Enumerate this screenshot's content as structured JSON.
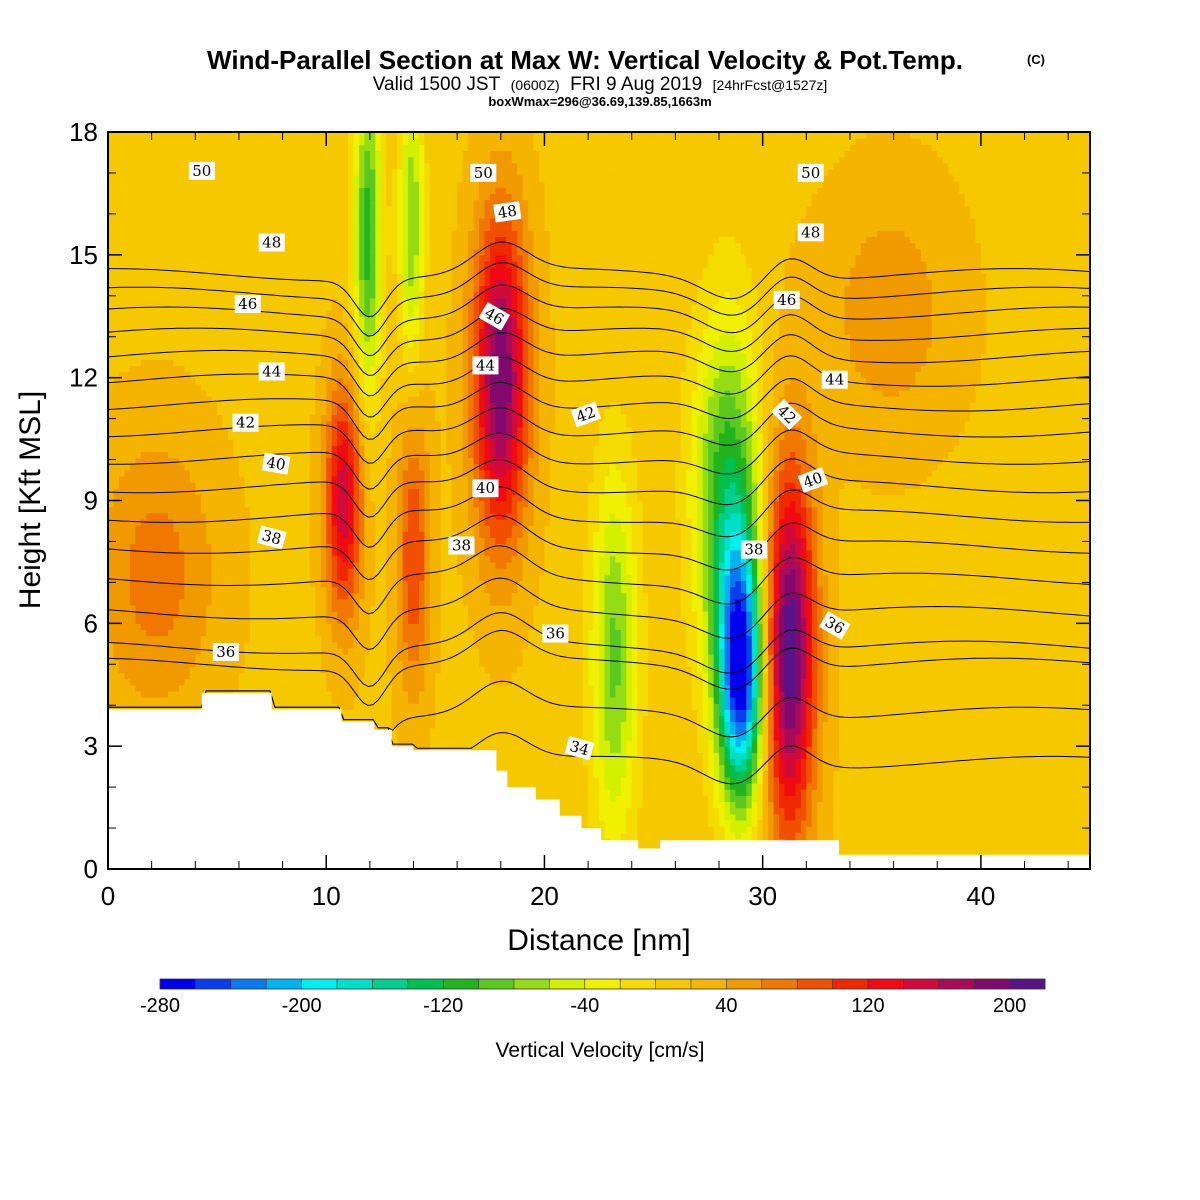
{
  "header": {
    "title": "Wind-Parallel Section at Max W: Vertical Velocity & Pot.Temp.",
    "title_mark": "(C)",
    "valid_prefix": "Valid 1500 JST",
    "valid_utc": "(0600Z)",
    "valid_date": "FRI 9 Aug 2019",
    "forecast_info": "[24hrFcst@1527z]",
    "box_info": "boxWmax=296@36.69,139.85,1663m"
  },
  "chart_data": {
    "type": "heatmap",
    "xlabel": "Distance [nm]",
    "ylabel": "Height [Kft MSL]",
    "xlim": [
      0,
      45
    ],
    "ylim": [
      0,
      18
    ],
    "x_ticks": [
      "0",
      "10",
      "20",
      "30",
      "40"
    ],
    "x_tick_values": [
      0,
      10,
      20,
      30,
      40
    ],
    "y_ticks": [
      "0",
      "3",
      "6",
      "9",
      "12",
      "15",
      "18"
    ],
    "y_tick_values": [
      0,
      3,
      6,
      9,
      12,
      15,
      18
    ],
    "background_value": 15,
    "features": [
      {
        "kind": "updraft",
        "x": 2.2,
        "y": 7.2,
        "sx": 2.0,
        "sy": 2.4,
        "w": 55
      },
      {
        "kind": "updraft",
        "x": 10.8,
        "y": 9.0,
        "sx": 0.6,
        "sy": 2.0,
        "w": 140
      },
      {
        "kind": "updraft",
        "x": 14.0,
        "y": 7.7,
        "sx": 0.55,
        "sy": 2.4,
        "w": 85
      },
      {
        "kind": "updraft",
        "x": 18.0,
        "y": 12.0,
        "sx": 0.9,
        "sy": 2.8,
        "w": 185
      },
      {
        "kind": "updraft",
        "x": 31.2,
        "y": 5.4,
        "sx": 0.85,
        "sy": 3.2,
        "w": 205
      },
      {
        "kind": "updraft",
        "x": 35.8,
        "y": 13.6,
        "sx": 2.2,
        "sy": 2.2,
        "w": 38
      },
      {
        "kind": "downdraft",
        "x": 11.9,
        "y": 15.5,
        "sx": 0.45,
        "sy": 2.8,
        "w": -125
      },
      {
        "kind": "downdraft",
        "x": 13.9,
        "y": 15.8,
        "sx": 0.4,
        "sy": 2.4,
        "w": -95
      },
      {
        "kind": "downdraft",
        "x": 23.2,
        "y": 5.2,
        "sx": 0.75,
        "sy": 3.2,
        "w": -100
      },
      {
        "kind": "downdraft",
        "x": 28.4,
        "y": 9.2,
        "sx": 1.1,
        "sy": 3.0,
        "w": -130
      },
      {
        "kind": "downdraft",
        "x": 29.0,
        "y": 4.8,
        "sx": 0.75,
        "sy": 2.2,
        "w": -285
      }
    ],
    "terrain": {
      "x": [
        0,
        4.3,
        4.3,
        7.5,
        7.5,
        10.7,
        10.7,
        12.2,
        12.2,
        13.0,
        13.0,
        14.0,
        14.0,
        17.8,
        17.8,
        18.3,
        18.3,
        19.6,
        19.6,
        20.7,
        20.7,
        21.7,
        21.7,
        22.6,
        22.6,
        24.3,
        24.3,
        25.3,
        25.3,
        33.5,
        33.5,
        45
      ],
      "y": [
        3.9,
        3.9,
        4.3,
        4.3,
        3.9,
        3.9,
        3.6,
        3.6,
        3.4,
        3.4,
        3.0,
        3.0,
        2.9,
        2.9,
        2.4,
        2.4,
        2.0,
        2.0,
        1.7,
        1.7,
        1.3,
        1.3,
        1.0,
        1.0,
        0.7,
        0.7,
        0.5,
        0.5,
        0.7,
        0.7,
        0.35,
        0.35
      ]
    },
    "contours": {
      "series_label": "Potential temperature",
      "levels": [
        34,
        35,
        36,
        37,
        38,
        39,
        40,
        41,
        42,
        43,
        44,
        45,
        46,
        47,
        48,
        49,
        50,
        51
      ],
      "labels": [
        {
          "text": "50",
          "x": 4.3,
          "y": 17.05,
          "angle": 0
        },
        {
          "text": "50",
          "x": 17.2,
          "y": 17.0,
          "angle": 0
        },
        {
          "text": "50",
          "x": 32.2,
          "y": 17.0,
          "angle": 0
        },
        {
          "text": "48",
          "x": 7.5,
          "y": 15.3,
          "angle": 0
        },
        {
          "text": "48",
          "x": 18.3,
          "y": 16.05,
          "angle": -8
        },
        {
          "text": "48",
          "x": 32.2,
          "y": 15.55,
          "angle": 0
        },
        {
          "text": "46",
          "x": 6.4,
          "y": 13.8,
          "angle": 0
        },
        {
          "text": "46",
          "x": 17.7,
          "y": 13.5,
          "angle": 30
        },
        {
          "text": "46",
          "x": 31.1,
          "y": 13.9,
          "angle": 0
        },
        {
          "text": "44",
          "x": 7.5,
          "y": 12.15,
          "angle": 0
        },
        {
          "text": "44",
          "x": 17.3,
          "y": 12.3,
          "angle": 0
        },
        {
          "text": "44",
          "x": 33.3,
          "y": 11.95,
          "angle": 0
        },
        {
          "text": "42",
          "x": 6.3,
          "y": 10.9,
          "angle": 0
        },
        {
          "text": "42",
          "x": 21.9,
          "y": 11.1,
          "angle": -20
        },
        {
          "text": "42",
          "x": 31.1,
          "y": 11.1,
          "angle": 45
        },
        {
          "text": "40",
          "x": 7.7,
          "y": 9.9,
          "angle": 10
        },
        {
          "text": "40",
          "x": 17.3,
          "y": 9.3,
          "angle": 0
        },
        {
          "text": "40",
          "x": 32.3,
          "y": 9.5,
          "angle": -20
        },
        {
          "text": "38",
          "x": 7.5,
          "y": 8.1,
          "angle": 15
        },
        {
          "text": "38",
          "x": 16.2,
          "y": 7.9,
          "angle": 0
        },
        {
          "text": "38",
          "x": 29.6,
          "y": 7.8,
          "angle": 0
        },
        {
          "text": "36",
          "x": 5.4,
          "y": 5.3,
          "angle": 0
        },
        {
          "text": "36",
          "x": 20.5,
          "y": 5.75,
          "angle": 0
        },
        {
          "text": "36",
          "x": 33.3,
          "y": 5.95,
          "angle": 30
        },
        {
          "text": "34",
          "x": 21.6,
          "y": 2.95,
          "angle": 15
        }
      ]
    },
    "colorbar": {
      "title": "Vertical Velocity [cm/s]",
      "min": -280,
      "max": 220,
      "step": 20,
      "tick_values": [
        -280,
        -200,
        -120,
        -40,
        40,
        120,
        200
      ],
      "tick_labels": [
        "-280",
        "-200",
        "-120",
        "-40",
        "40",
        "120",
        "200"
      ],
      "colors": [
        "#0000ee",
        "#0a3cf0",
        "#0a78f0",
        "#00b4f0",
        "#00f0f0",
        "#00e0c8",
        "#00d08c",
        "#00c050",
        "#22b41e",
        "#5ac81e",
        "#96dc14",
        "#d2f000",
        "#f0f000",
        "#f5dc00",
        "#f5c800",
        "#f5b400",
        "#f09a00",
        "#f07800",
        "#f05000",
        "#f02800",
        "#f00a14",
        "#d20a3c",
        "#aa0a5a",
        "#820a6e",
        "#5a1487"
      ]
    }
  }
}
